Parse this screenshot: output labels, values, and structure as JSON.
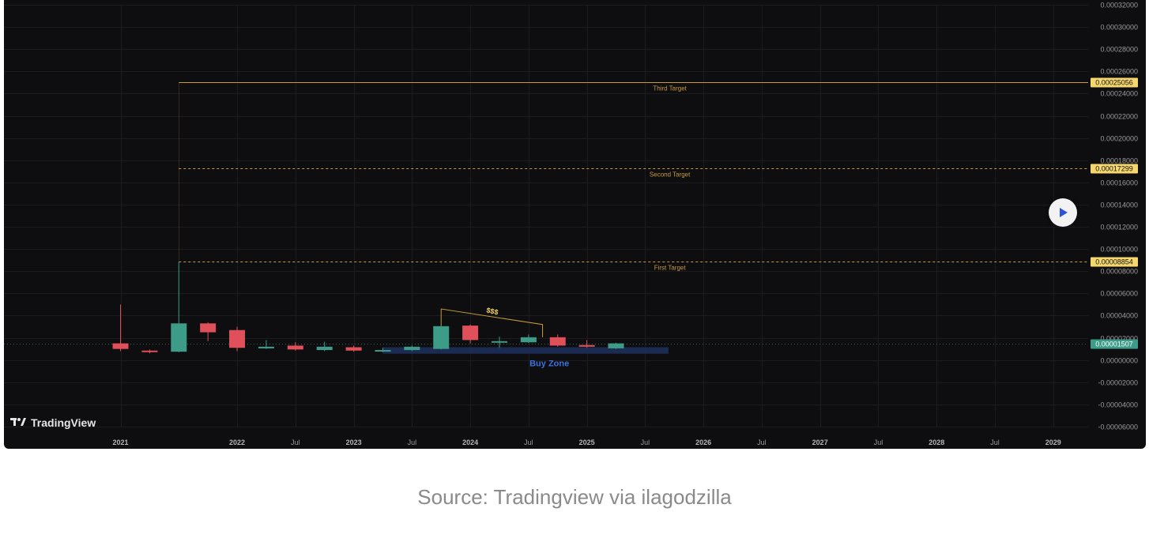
{
  "caption": "Source: Tradingview via ilagodzilla",
  "logo": {
    "mark": "17",
    "text": "TradingView"
  },
  "play_icon": "play-icon",
  "colors": {
    "background": "#0e0e10",
    "grid": "#1c1c1f",
    "up": "#3d9c88",
    "down": "#e0505a",
    "target_line": "#c79a3a",
    "target_badge": "#f5d76e",
    "current_badge": "#3d9c88",
    "buy_zone": "#1e2f5a",
    "buy_zone_text": "#3b6fe0",
    "axis_text": "#9a9a9a"
  },
  "chart_data": {
    "type": "candlestick",
    "ylim": [
      -6e-05,
      0.00032
    ],
    "y_ticks": [
      "0.00032000",
      "0.00030000",
      "0.00028000",
      "0.00026000",
      "0.00024000",
      "0.00022000",
      "0.00020000",
      "0.00018000",
      "0.00016000",
      "0.00014000",
      "0.00012000",
      "0.00010000",
      "0.00008000",
      "0.00006000",
      "0.00004000",
      "0.00002000",
      "0.00000000",
      "-0.00002000",
      "-0.00004000",
      "-0.00006000"
    ],
    "y_tick_values": [
      0.00032,
      0.0003,
      0.00028,
      0.00026,
      0.00024,
      0.00022,
      0.0002,
      0.00018,
      0.00016,
      0.00014,
      0.00012,
      0.0001,
      8e-05,
      6e-05,
      4e-05,
      2e-05,
      0,
      -2e-05,
      -4e-05,
      -6e-05
    ],
    "x_ticks": [
      "2021",
      "2022",
      "Jul",
      "2023",
      "Jul",
      "2024",
      "Jul",
      "2025",
      "Jul",
      "2026",
      "Jul",
      "2027",
      "Jul",
      "2028",
      "Jul",
      "2029"
    ],
    "x_tick_values": [
      2021.0,
      2022.0,
      2022.5,
      2023.0,
      2023.5,
      2024.0,
      2024.5,
      2025.0,
      2025.5,
      2026.0,
      2026.5,
      2027.0,
      2027.5,
      2028.0,
      2028.5,
      2029.0
    ],
    "x_range": [
      2020.0,
      2029.3
    ],
    "candles": [
      {
        "t": 2021.0,
        "o": 1.5e-05,
        "h": 5e-05,
        "l": 8e-06,
        "c": 1e-05
      },
      {
        "t": 2021.25,
        "o": 8.5e-06,
        "h": 9.5e-06,
        "l": 6e-06,
        "c": 7.5e-06
      },
      {
        "t": 2021.5,
        "o": 7.5e-06,
        "h": 8.85e-05,
        "l": 7e-06,
        "c": 3.3e-05
      },
      {
        "t": 2021.75,
        "o": 3.3e-05,
        "h": 3.4e-05,
        "l": 1.7e-05,
        "c": 2.5e-05
      },
      {
        "t": 2022.0,
        "o": 2.7e-05,
        "h": 3e-05,
        "l": 8e-06,
        "c": 1.1e-05
      },
      {
        "t": 2022.25,
        "o": 1.05e-05,
        "h": 1.8e-05,
        "l": 1e-05,
        "c": 1.2e-05
      },
      {
        "t": 2022.5,
        "o": 1.3e-05,
        "h": 1.6e-05,
        "l": 8.5e-06,
        "c": 9.5e-06
      },
      {
        "t": 2022.75,
        "o": 9e-06,
        "h": 1.65e-05,
        "l": 8e-06,
        "c": 1.2e-05
      },
      {
        "t": 2023.0,
        "o": 1.15e-05,
        "h": 1.3e-05,
        "l": 7.5e-06,
        "c": 8.5e-06
      },
      {
        "t": 2023.25,
        "o": 8.5e-06,
        "h": 1.1e-05,
        "l": 7e-06,
        "c": 9e-06
      },
      {
        "t": 2023.5,
        "o": 9e-06,
        "h": 1.3e-05,
        "l": 8e-06,
        "c": 1.2e-05
      },
      {
        "t": 2023.75,
        "o": 1e-05,
        "h": 3.1e-05,
        "l": 9.5e-06,
        "c": 3.05e-05
      },
      {
        "t": 2024.0,
        "o": 3.1e-05,
        "h": 3.2e-05,
        "l": 1.5e-05,
        "c": 1.8e-05
      },
      {
        "t": 2024.25,
        "o": 1.6e-05,
        "h": 2.1e-05,
        "l": 1.1e-05,
        "c": 1.7e-05
      },
      {
        "t": 2024.5,
        "o": 1.6e-05,
        "h": 2.3e-05,
        "l": 1.55e-05,
        "c": 2.05e-05
      },
      {
        "t": 2024.75,
        "o": 2.05e-05,
        "h": 2.3e-05,
        "l": 1.2e-05,
        "c": 1.3e-05
      },
      {
        "t": 2025.0,
        "o": 1.35e-05,
        "h": 1.8e-05,
        "l": 1.1e-05,
        "c": 1.2e-05
      },
      {
        "t": 2025.25,
        "o": 1.05e-05,
        "h": 1.55e-05,
        "l": 1e-05,
        "c": 1.5e-05
      }
    ],
    "targets": [
      {
        "label": "Third Target",
        "value": 0.00025056,
        "badge": "0.00025056",
        "style": "solid"
      },
      {
        "label": "Second Target",
        "value": 0.00017299,
        "badge": "0.00017299",
        "style": "dashed"
      },
      {
        "label": "First Target",
        "value": 8.854e-05,
        "badge": "0.00008854",
        "style": "dashed"
      }
    ],
    "current_price": {
      "value": 1.507e-05,
      "badge": "0.00001507"
    },
    "buy_zone": {
      "label": "Buy Zone",
      "low": 5.7e-06,
      "high": 1.15e-05,
      "x_start": 2023.25,
      "x_end": 2025.7
    },
    "annotation": {
      "label": "$$$",
      "points": [
        {
          "t": 2023.75,
          "v": 4.6e-05
        },
        {
          "t": 2024.62,
          "v": 3.2e-05
        }
      ]
    }
  }
}
